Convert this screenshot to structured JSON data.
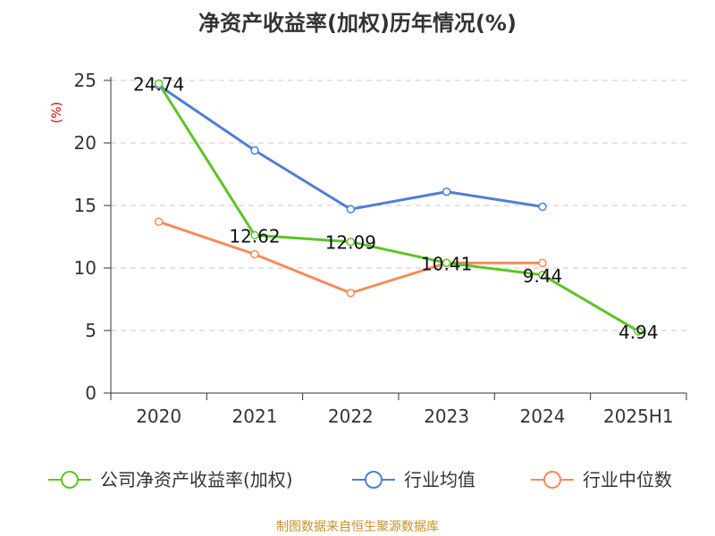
{
  "chart_data": {
    "type": "line",
    "title": "净资产收益率(加权)历年情况(%)",
    "ylabel": "(%)",
    "xlabel": "",
    "categories": [
      "2020",
      "2021",
      "2022",
      "2023",
      "2024",
      "2025H1"
    ],
    "ylim": [
      0,
      25
    ],
    "yticks": [
      0,
      5,
      10,
      15,
      20,
      25
    ],
    "grid": true,
    "legend_position": "bottom",
    "series": [
      {
        "name": "公司净资产收益率(加权)",
        "color": "#5dc427",
        "values": [
          24.74,
          12.62,
          12.09,
          10.41,
          9.44,
          4.94
        ],
        "labels": [
          "24.74",
          "12.62",
          "12.09",
          "10.41",
          "9.44",
          "4.94"
        ]
      },
      {
        "name": "行业均值",
        "color": "#4e7ed6",
        "values": [
          24.6,
          19.4,
          14.7,
          16.1,
          14.9,
          null
        ]
      },
      {
        "name": "行业中位数",
        "color": "#f68b5a",
        "values": [
          13.7,
          11.1,
          8.0,
          10.4,
          10.4,
          null
        ]
      }
    ]
  },
  "source": "制图数据来自恒生聚源数据库"
}
